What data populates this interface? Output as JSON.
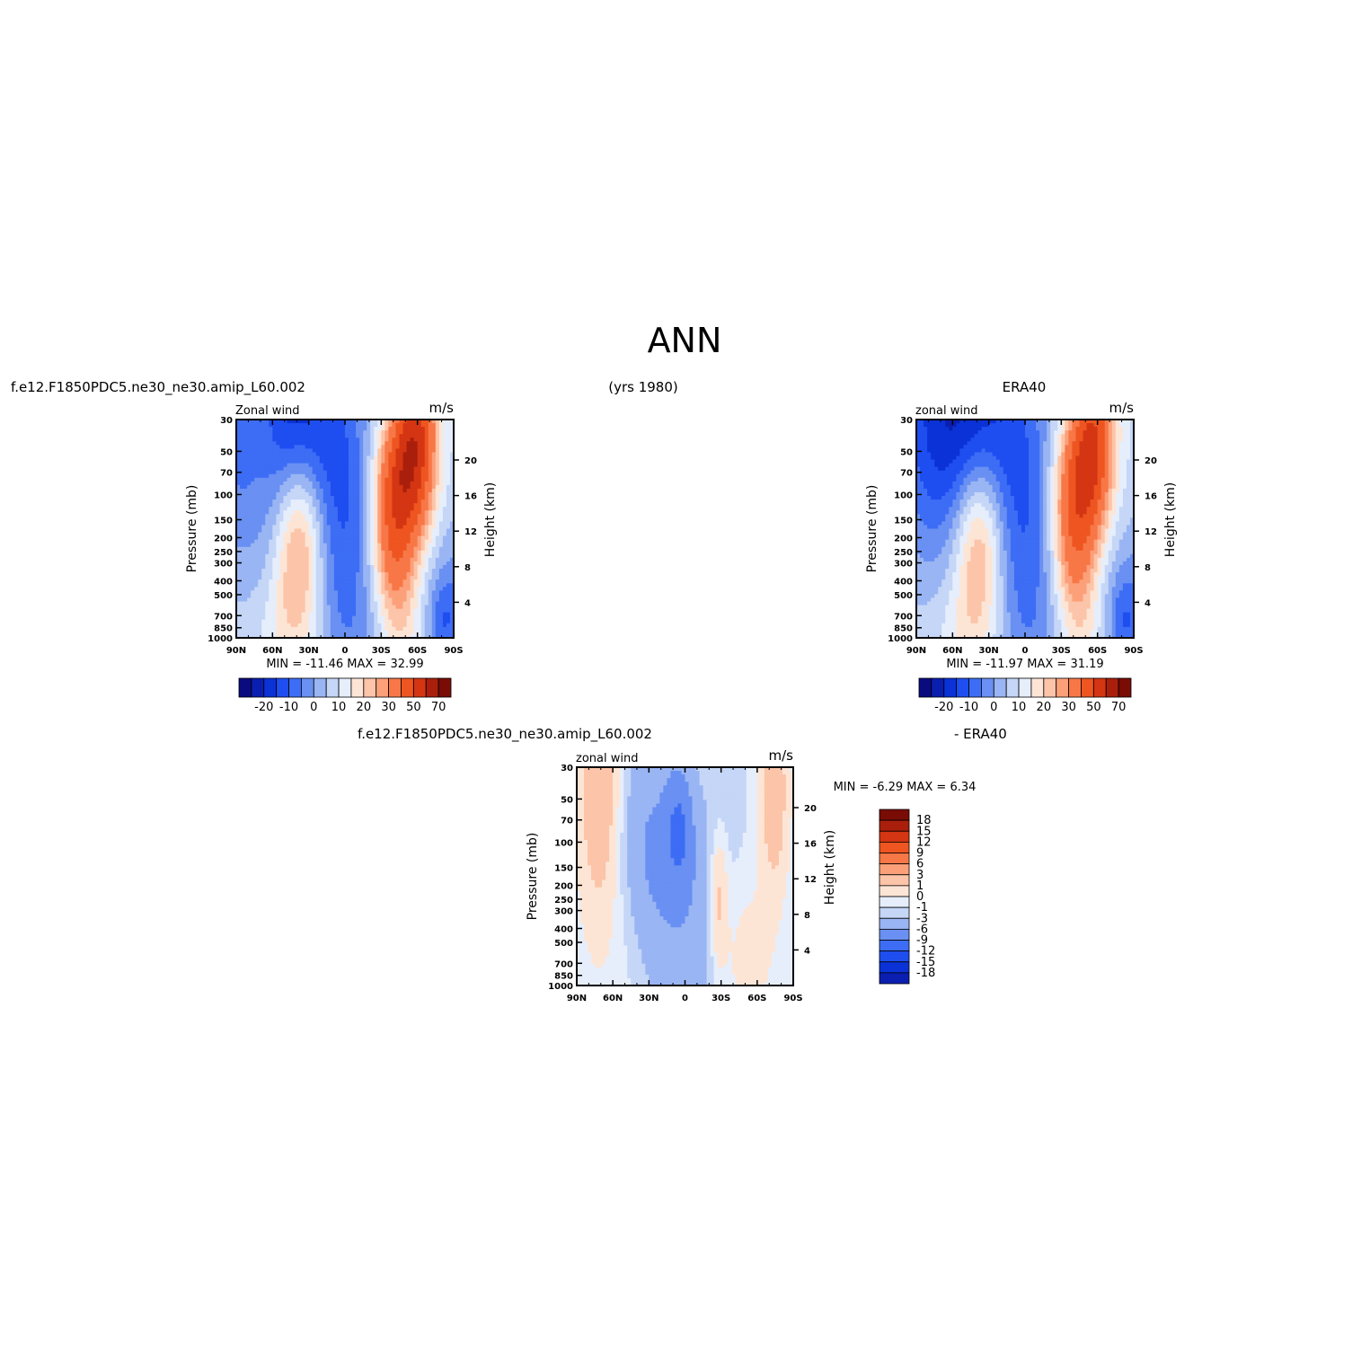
{
  "page": {
    "title": "ANN",
    "case_name": "f.e12.F1850PDC5.ne30_ne30.amip_L60.002",
    "years": "(yrs 1980)",
    "obs_name": "ERA40",
    "diff_case": "f.e12.F1850PDC5.ne30_ne30.amip_L60.002",
    "diff_obs": "- ERA40"
  },
  "colors": {
    "full_scale": [
      "#0b0b80",
      "#0a1fb0",
      "#0b32d6",
      "#1e4ef0",
      "#3d6df5",
      "#6990f2",
      "#9ab5f3",
      "#c5d6f7",
      "#e6eefc",
      "#fde5d6",
      "#fcc4a8",
      "#fca07a",
      "#f87747",
      "#ee5520",
      "#d43512",
      "#aa1f0c",
      "#7a0c06"
    ],
    "diff_scale": [
      "#0b0b80",
      "#0a1fb0",
      "#0b32d6",
      "#1e4ef0",
      "#3d6df5",
      "#6990f2",
      "#9ab5f3",
      "#c5d6f7",
      "#e6eefc",
      "#fde5d6",
      "#fcc4a8",
      "#fca07a",
      "#f87747",
      "#ee5520",
      "#d43512",
      "#aa1f0c",
      "#7a0c06"
    ]
  },
  "chart_data": [
    {
      "type": "heatmap",
      "title": "f.e12.F1850PDC5.ne30_ne30.amip_L60.002",
      "left_label": "Zonal wind",
      "units": "m/s",
      "ylabel": "Pressure (mb)",
      "y2label": "Height (km)",
      "x_ticks": [
        "90N",
        "60N",
        "30N",
        "0",
        "30S",
        "60S",
        "90S"
      ],
      "y_ticks": [
        30,
        50,
        70,
        100,
        150,
        200,
        250,
        300,
        400,
        500,
        700,
        850,
        1000
      ],
      "y2_ticks": [
        4,
        8,
        12,
        16,
        20
      ],
      "stats": {
        "min": "-11.46",
        "max": "32.99",
        "min_label": "MIN =",
        "max_label": "MAX ="
      },
      "colorbar_labels": [
        "-20",
        "-10",
        "0",
        "10",
        "20",
        "30",
        "50",
        "70"
      ],
      "features": [
        {
          "lat": -90,
          "p": 600,
          "amp": -12,
          "slat": 36,
          "slogp": 0.4
        },
        {
          "lat": 55,
          "p": 30,
          "amp": -30,
          "slat": 38,
          "slogp": 0.7
        },
        {
          "lat": 0,
          "p": 300,
          "amp": -14,
          "slat": 22,
          "slogp": 0.9
        },
        {
          "lat": 38,
          "p": 200,
          "amp": 30,
          "slat": 15,
          "slogp": 0.42
        },
        {
          "lat": -40,
          "p": 200,
          "amp": 34,
          "slat": 13,
          "slogp": 0.4
        },
        {
          "lat": -60,
          "p": 35,
          "amp": 38,
          "slat": 12,
          "slogp": 0.55
        },
        {
          "lat": -45,
          "p": 60,
          "amp": 22,
          "slat": 14,
          "slogp": 0.3
        },
        {
          "lat": 70,
          "p": 30,
          "amp": 12,
          "slat": 14,
          "slogp": 0.5
        },
        {
          "lat": 45,
          "p": 900,
          "amp": 8,
          "slat": 20,
          "slogp": 0.3
        },
        {
          "lat": -50,
          "p": 900,
          "amp": 10,
          "slat": 14,
          "slogp": 0.3
        },
        {
          "lat": -82,
          "p": 800,
          "amp": -8,
          "slat": 8,
          "slogp": 0.2
        }
      ]
    },
    {
      "type": "heatmap",
      "title": "ERA40",
      "left_label": "zonal wind",
      "units": "m/s",
      "ylabel": "Pressure (mb)",
      "y2label": "Height (km)",
      "x_ticks": [
        "90N",
        "60N",
        "30N",
        "0",
        "30S",
        "60S",
        "90S"
      ],
      "y_ticks": [
        30,
        50,
        70,
        100,
        150,
        200,
        250,
        300,
        400,
        500,
        700,
        850,
        1000
      ],
      "y2_ticks": [
        4,
        8,
        12,
        16,
        20
      ],
      "stats": {
        "min": "-11.97",
        "max": "31.19",
        "min_label": "MIN =",
        "max_label": "MAX ="
      },
      "colorbar_labels": [
        "-20",
        "-10",
        "0",
        "10",
        "20",
        "30",
        "50",
        "70"
      ],
      "features": [
        {
          "lat": -90,
          "p": 600,
          "amp": -12,
          "slat": 36,
          "slogp": 0.4
        },
        {
          "lat": 55,
          "p": 30,
          "amp": -30,
          "slat": 38,
          "slogp": 0.7
        },
        {
          "lat": 0,
          "p": 300,
          "amp": -14,
          "slat": 22,
          "slogp": 0.9
        },
        {
          "lat": 38,
          "p": 200,
          "amp": 28,
          "slat": 15,
          "slogp": 0.42
        },
        {
          "lat": -40,
          "p": 200,
          "amp": 31,
          "slat": 13,
          "slogp": 0.4
        },
        {
          "lat": -58,
          "p": 35,
          "amp": 32,
          "slat": 12,
          "slogp": 0.55
        },
        {
          "lat": -45,
          "p": 60,
          "amp": 20,
          "slat": 14,
          "slogp": 0.3
        },
        {
          "lat": 45,
          "p": 900,
          "amp": 8,
          "slat": 20,
          "slogp": 0.3
        },
        {
          "lat": -50,
          "p": 900,
          "amp": 10,
          "slat": 14,
          "slogp": 0.3
        },
        {
          "lat": -82,
          "p": 800,
          "amp": -8,
          "slat": 8,
          "slogp": 0.2
        }
      ]
    },
    {
      "type": "heatmap",
      "title": "f.e12.F1850PDC5.ne30_ne30.amip_L60.002 - ERA40",
      "left_label": "zonal wind",
      "units": "m/s",
      "ylabel": "Pressure (mb)",
      "y2label": "Height (km)",
      "x_ticks": [
        "90N",
        "60N",
        "30N",
        "0",
        "30S",
        "60S",
        "90S"
      ],
      "y_ticks": [
        30,
        50,
        70,
        100,
        150,
        200,
        250,
        300,
        400,
        500,
        700,
        850,
        1000
      ],
      "y2_ticks": [
        4,
        8,
        12,
        16,
        20
      ],
      "stats": {
        "min": "-6.29",
        "max": "6.34",
        "min_label": "MIN =",
        "max_label": "MAX ="
      },
      "colorbar_labels": [
        "18",
        "15",
        "12",
        "9",
        "6",
        "3",
        "1",
        "0",
        "-1",
        "-3",
        "-6",
        "-9",
        "-12",
        "-15",
        "-18"
      ],
      "features": [
        {
          "lat": 72,
          "p": 45,
          "amp": 6.0,
          "slat": 10,
          "slogp": 0.5
        },
        {
          "lat": -74,
          "p": 45,
          "amp": 5.5,
          "slat": 8,
          "slogp": 0.45
        },
        {
          "lat": -28,
          "p": 250,
          "amp": 4.0,
          "slat": 5,
          "slogp": 0.3
        },
        {
          "lat": 5,
          "p": 80,
          "amp": -5.0,
          "slat": 8,
          "slogp": 0.3
        },
        {
          "lat": 0,
          "p": 300,
          "amp": -2.5,
          "slat": 25,
          "slogp": 0.6
        },
        {
          "lat": 30,
          "p": 100,
          "amp": -2.5,
          "slat": 15,
          "slogp": 0.5
        },
        {
          "lat": -50,
          "p": 600,
          "amp": 1.8,
          "slat": 18,
          "slogp": 0.4
        },
        {
          "lat": 65,
          "p": 500,
          "amp": 0.8,
          "slat": 25,
          "slogp": 0.5
        }
      ]
    }
  ]
}
